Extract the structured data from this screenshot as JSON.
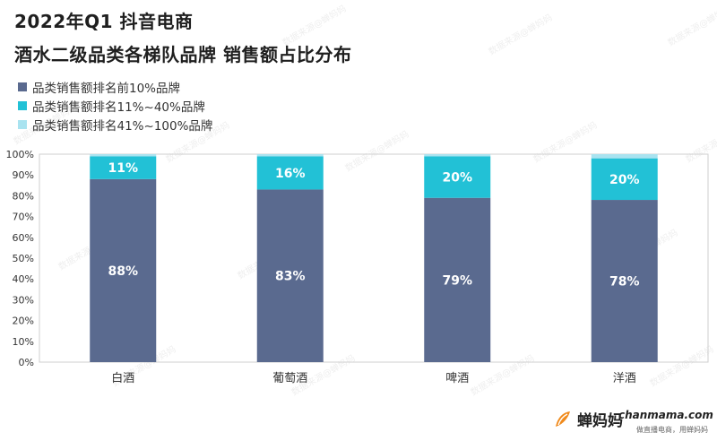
{
  "header": {
    "title_line1": "2022年Q1 抖音电商",
    "title_line2": "酒水二级品类各梯队品牌 销售额占比分布"
  },
  "legend": {
    "items": [
      {
        "label": "品类销售额排名前10%品牌",
        "color": "#5a6a8f"
      },
      {
        "label": "品类销售额排名11%~40%品牌",
        "color": "#22c1d6"
      },
      {
        "label": "品类销售额排名41%~100%品牌",
        "color": "#a9e3f0"
      }
    ]
  },
  "watermark": {
    "text": "数据来源@蝉妈妈"
  },
  "footer": {
    "logo_text": "蝉妈妈",
    "url": "chanmama.com",
    "tagline": "做直播电商，用蝉妈妈"
  },
  "chart_data": {
    "type": "bar",
    "stacked": true,
    "categories": [
      "白酒",
      "葡萄酒",
      "啤酒",
      "洋酒"
    ],
    "series": [
      {
        "name": "品类销售额排名前10%品牌",
        "values": [
          88,
          83,
          79,
          78
        ],
        "color": "#5a6a8f",
        "labels": [
          "88%",
          "83%",
          "79%",
          "78%"
        ]
      },
      {
        "name": "品类销售额排名11%~40%品牌",
        "values": [
          11,
          16,
          20,
          20
        ],
        "color": "#22c1d6",
        "labels": [
          "11%",
          "16%",
          "20%",
          "20%"
        ]
      },
      {
        "name": "品类销售额排名41%~100%品牌",
        "values": [
          1,
          1,
          1,
          2
        ],
        "color": "#a9e3f0",
        "labels": [
          "",
          "",
          "",
          ""
        ]
      }
    ],
    "ylim": [
      0,
      100
    ],
    "yticks": [
      "0%",
      "10%",
      "20%",
      "30%",
      "40%",
      "50%",
      "60%",
      "70%",
      "80%",
      "90%",
      "100%"
    ],
    "grid": false,
    "legend_position": "top-left"
  }
}
